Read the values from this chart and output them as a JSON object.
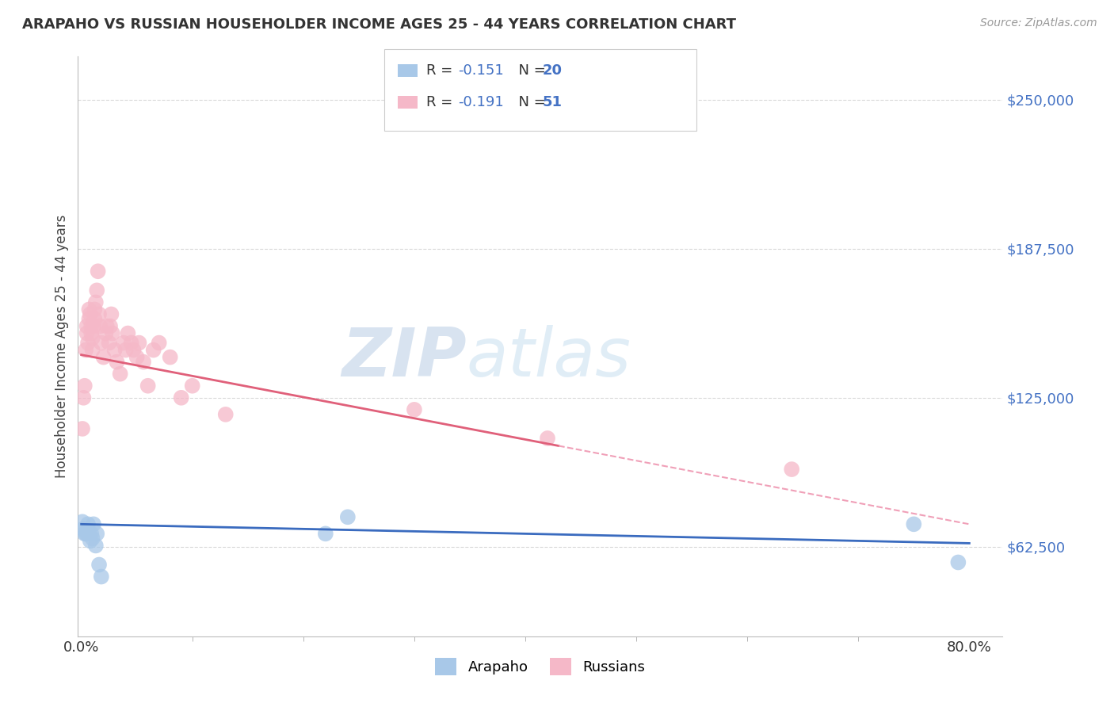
{
  "title": "ARAPAHO VS RUSSIAN HOUSEHOLDER INCOME AGES 25 - 44 YEARS CORRELATION CHART",
  "source": "Source: ZipAtlas.com",
  "ylabel": "Householder Income Ages 25 - 44 years",
  "ytick_labels": [
    "$62,500",
    "$125,000",
    "$187,500",
    "$250,000"
  ],
  "ytick_values": [
    62500,
    125000,
    187500,
    250000
  ],
  "ymin": 25000,
  "ymax": 268000,
  "xmin": -0.003,
  "xmax": 0.83,
  "legend_arapaho_r": "R = -0.151",
  "legend_arapaho_n": "N = 20",
  "legend_russian_r": "R = -0.191",
  "legend_russian_n": "N =  51",
  "arapaho_color": "#a8c8e8",
  "russian_color": "#f5b8c8",
  "trendline_arapaho_color": "#3a6bbf",
  "trendline_russian_color": "#e0607a",
  "trendline_russian_dashed_color": "#f0a0b8",
  "watermark_zip_color": "#b8cce4",
  "watermark_atlas_color": "#c8d8f0",
  "background_color": "#ffffff",
  "grid_color": "#d8d8d8",
  "arapaho_x": [
    0.001,
    0.002,
    0.003,
    0.004,
    0.005,
    0.006,
    0.006,
    0.007,
    0.008,
    0.009,
    0.01,
    0.011,
    0.013,
    0.014,
    0.016,
    0.018,
    0.22,
    0.24,
    0.75,
    0.79
  ],
  "arapaho_y": [
    73000,
    70000,
    68000,
    68000,
    68000,
    72000,
    69000,
    68000,
    65000,
    68000,
    66000,
    72000,
    63000,
    68000,
    55000,
    50000,
    68000,
    75000,
    72000,
    56000
  ],
  "russian_x": [
    0.001,
    0.002,
    0.003,
    0.004,
    0.005,
    0.005,
    0.006,
    0.007,
    0.007,
    0.008,
    0.009,
    0.009,
    0.01,
    0.01,
    0.011,
    0.012,
    0.012,
    0.013,
    0.014,
    0.015,
    0.016,
    0.017,
    0.018,
    0.02,
    0.022,
    0.023,
    0.025,
    0.026,
    0.027,
    0.028,
    0.03,
    0.032,
    0.035,
    0.038,
    0.04,
    0.042,
    0.045,
    0.047,
    0.05,
    0.052,
    0.056,
    0.06,
    0.065,
    0.07,
    0.08,
    0.09,
    0.1,
    0.13,
    0.3,
    0.42,
    0.64
  ],
  "russian_y": [
    112000,
    125000,
    130000,
    145000,
    155000,
    152000,
    148000,
    162000,
    158000,
    160000,
    152000,
    155000,
    150000,
    145000,
    155000,
    158000,
    162000,
    165000,
    170000,
    178000,
    160000,
    155000,
    148000,
    142000,
    152000,
    155000,
    148000,
    155000,
    160000,
    152000,
    145000,
    140000,
    135000,
    148000,
    145000,
    152000,
    148000,
    145000,
    142000,
    148000,
    140000,
    130000,
    145000,
    148000,
    142000,
    125000,
    130000,
    118000,
    120000,
    108000,
    95000
  ],
  "trendline_russian_switch_x": 0.43
}
